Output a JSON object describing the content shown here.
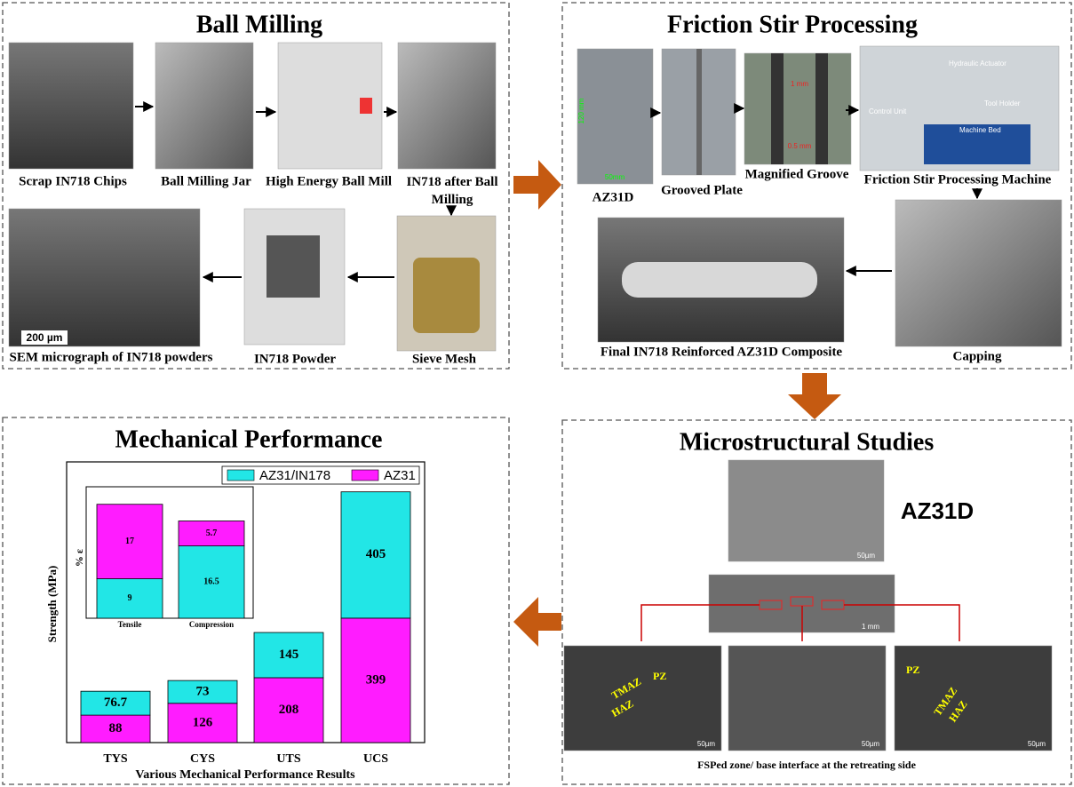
{
  "ball_milling": {
    "title": "Ball Milling",
    "labels": [
      "Scrap IN718 Chips",
      "Ball Milling Jar",
      "High Energy Ball Mill",
      "IN718 after Ball Milling",
      "Sieve Mesh",
      "IN718 Powder",
      "SEM micrograph of IN718 powders"
    ],
    "scale_bar": "200 µm"
  },
  "friction_stir_processing": {
    "title": "Friction Stir Processing",
    "labels": [
      "AZ31D",
      "Grooved Plate",
      "Magnified Groove",
      "Friction Stir Processing Machine",
      "Capping",
      "Final IN718 Reinforced AZ31D Composite"
    ],
    "annotations": [
      "1 mm",
      "0.5 mm",
      "120 mm",
      "50mm",
      "Hydraulic Actuator",
      "Control Unit",
      "Tool Holder",
      "Machine Bed"
    ]
  },
  "microstructural_studies": {
    "title": "Microstructural Studies",
    "sample": "AZ31D",
    "zone_labels": [
      "PZ",
      "TMAZ",
      "HAZ"
    ],
    "scale_bars": [
      "50µm",
      "1 mm"
    ],
    "caption": "FSPed zone/ base interface at the retreating side"
  },
  "chart_data": {
    "type": "bar",
    "stacked": true,
    "title": "Mechanical Performance",
    "y_label": "Strength (MPa)",
    "x_label": "Various Mechanical Performance Results",
    "categories": [
      "TYS",
      "CYS",
      "UTS",
      "UCS"
    ],
    "series": [
      {
        "name": "AZ31/IN178",
        "color": "#22e6e6",
        "values": [
          76.7,
          73,
          145,
          405
        ]
      },
      {
        "name": "AZ31",
        "color": "#ff1cff",
        "values": [
          88,
          126,
          208,
          399
        ]
      }
    ],
    "ylim": [
      0,
      900
    ],
    "legend": "top-right",
    "inset": {
      "type": "bar",
      "stacked": true,
      "y_label": "% ε",
      "categories": [
        "Tensile",
        "Compression"
      ],
      "series": [
        {
          "name": "AZ31/IN178",
          "color": "#22e6e6",
          "values": [
            9,
            16.5
          ]
        },
        {
          "name": "AZ31",
          "color": "#ff1cff",
          "values": [
            17,
            5.7
          ]
        }
      ],
      "ylim": [
        0,
        30
      ]
    }
  }
}
